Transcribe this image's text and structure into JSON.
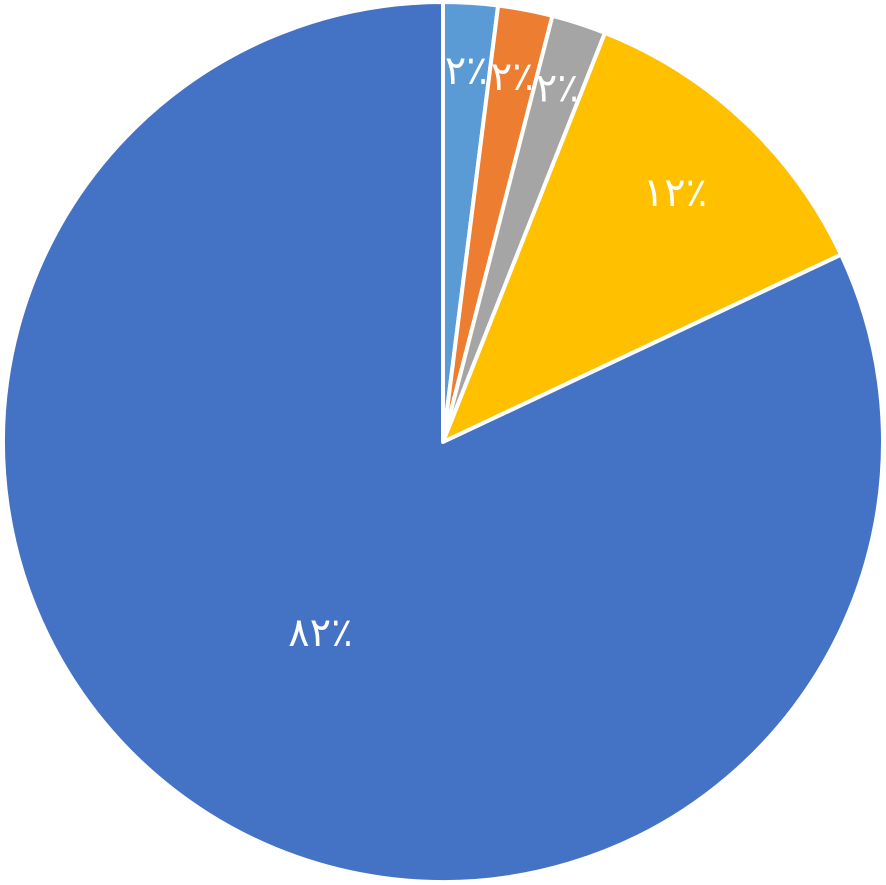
{
  "chart_data": {
    "type": "pie",
    "values": [
      2,
      2,
      2,
      12,
      82
    ],
    "value_labels": [
      "۲٪",
      "۲٪",
      "۲٪",
      "۱۲٪",
      "۸۲٪"
    ],
    "colors": [
      "#5b9bd5",
      "#ed7d31",
      "#a5a5a5",
      "#ffc000",
      "#4472c4"
    ]
  }
}
